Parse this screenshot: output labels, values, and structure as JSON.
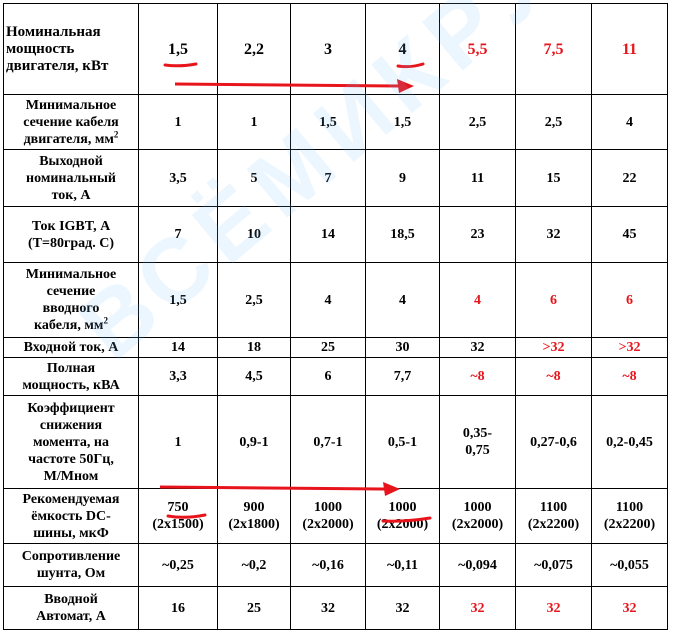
{
  "header": {
    "label": "Номинальная мощность двигателя, кВт",
    "values": [
      {
        "text": "1,5",
        "red": false
      },
      {
        "text": "2,2",
        "red": false
      },
      {
        "text": "3",
        "red": false
      },
      {
        "text": "4",
        "red": false
      },
      {
        "text": "5,5",
        "red": true
      },
      {
        "text": "7,5",
        "red": true
      },
      {
        "text": "11",
        "red": true
      }
    ]
  },
  "rows": [
    {
      "label_parts": [
        "Минимальное",
        "сечение кабеля",
        "двигателя, мм"
      ],
      "sup": "2",
      "cells": [
        {
          "text": "1"
        },
        {
          "text": "1"
        },
        {
          "text": "1,5"
        },
        {
          "text": "1,5"
        },
        {
          "text": "2,5"
        },
        {
          "text": "2,5"
        },
        {
          "text": "4"
        }
      ]
    },
    {
      "label_parts": [
        "Выходной",
        "номинальный",
        "ток, А"
      ],
      "sup": "",
      "cells": [
        {
          "text": "3,5"
        },
        {
          "text": "5"
        },
        {
          "text": "7"
        },
        {
          "text": "9"
        },
        {
          "text": "11"
        },
        {
          "text": "15"
        },
        {
          "text": "22"
        }
      ]
    },
    {
      "label_parts": [
        "Ток IGBT, А",
        "(Т=80град. С)"
      ],
      "sup": "",
      "cells": [
        {
          "text": "7"
        },
        {
          "text": "10"
        },
        {
          "text": "14"
        },
        {
          "text": "18,5"
        },
        {
          "text": "23"
        },
        {
          "text": "32"
        },
        {
          "text": "45"
        }
      ]
    },
    {
      "label_parts": [
        "Минимальное",
        "сечение",
        "вводного",
        "кабеля, мм"
      ],
      "sup": "2",
      "cells": [
        {
          "text": "1,5"
        },
        {
          "text": "2,5"
        },
        {
          "text": "4"
        },
        {
          "text": "4"
        },
        {
          "text": "4",
          "red": true
        },
        {
          "text": "6",
          "red": true
        },
        {
          "text": "6",
          "red": true
        }
      ]
    },
    {
      "label_parts": [
        "Входной ток, А"
      ],
      "sup": "",
      "cells": [
        {
          "text": "14"
        },
        {
          "text": "18"
        },
        {
          "text": "25"
        },
        {
          "text": "30"
        },
        {
          "text": "32"
        },
        {
          "text": ">32",
          "red": true
        },
        {
          "text": ">32",
          "red": true
        }
      ]
    },
    {
      "label_parts": [
        "Полная",
        "мощность, кВА"
      ],
      "sup": "",
      "cells": [
        {
          "text": "3,3"
        },
        {
          "text": "4,5"
        },
        {
          "text": "6"
        },
        {
          "text": "7,7"
        },
        {
          "text": "~8",
          "red": true
        },
        {
          "text": "~8",
          "red": true
        },
        {
          "text": "~8",
          "red": true
        }
      ]
    },
    {
      "label_parts": [
        "Коэффициент",
        "снижения",
        "момента, на",
        "частоте 50Гц,",
        "М/Мном"
      ],
      "sup": "",
      "cells": [
        {
          "text": "1"
        },
        {
          "text": "0,9-1"
        },
        {
          "text": "0,7-1"
        },
        {
          "text": "0,5-1"
        },
        {
          "lines": [
            "0,35-",
            "0,75"
          ]
        },
        {
          "text": "0,27-0,6"
        },
        {
          "text": "0,2-0,45"
        }
      ]
    },
    {
      "label_parts": [
        "Рекомендуемая",
        "ёмкость DC-",
        "шины, мкФ"
      ],
      "sup": "",
      "cells": [
        {
          "lines": [
            "750",
            "(2x1500)"
          ]
        },
        {
          "lines": [
            "900",
            "(2x1800)"
          ]
        },
        {
          "lines": [
            "1000",
            "(2x2000)"
          ]
        },
        {
          "lines": [
            "1000",
            "(2x2000)"
          ]
        },
        {
          "lines": [
            "1000",
            "(2x2000)"
          ]
        },
        {
          "lines": [
            "1100",
            "(2x2200)"
          ]
        },
        {
          "lines": [
            "1100",
            "(2x2200)"
          ]
        }
      ]
    },
    {
      "label_parts": [
        "Сопротивление",
        "шунта, Ом"
      ],
      "sup": "",
      "cells": [
        {
          "text": "~0,25"
        },
        {
          "text": "~0,2"
        },
        {
          "text": "~0,16"
        },
        {
          "text": "~0,11"
        },
        {
          "text": "~0,094"
        },
        {
          "text": "~0,075"
        },
        {
          "text": "~0,055"
        }
      ]
    },
    {
      "label_parts": [
        "Вводной",
        "Автомат, А"
      ],
      "sup": "",
      "cells": [
        {
          "text": "16"
        },
        {
          "text": "25"
        },
        {
          "text": "32"
        },
        {
          "text": "32"
        },
        {
          "text": "32",
          "red": true
        },
        {
          "text": "32",
          "red": true
        },
        {
          "text": "32",
          "red": true
        }
      ]
    }
  ],
  "watermark": "ВСЁМИКРУТ",
  "colors": {
    "text": "#000000",
    "highlight": "#e8141c",
    "watermark": "#6ebeff"
  }
}
